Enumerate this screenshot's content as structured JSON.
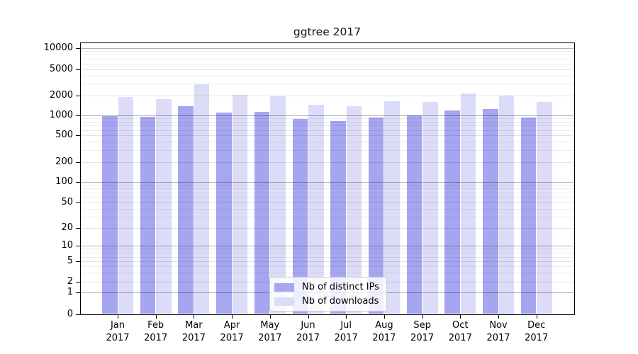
{
  "title": "ggtree 2017",
  "legend": {
    "items": [
      {
        "label": "Nb of distinct IPs",
        "color": "#a5a5f0"
      },
      {
        "label": "Nb of downloads",
        "color": "#dcdcf8"
      }
    ]
  },
  "y_axis": {
    "tick_labels": [
      "0",
      "1",
      "2",
      "5",
      "10",
      "20",
      "50",
      "100",
      "200",
      "500",
      "1000",
      "2000",
      "5000",
      "10000"
    ]
  },
  "x_axis": {
    "months": [
      "Jan",
      "Feb",
      "Mar",
      "Apr",
      "May",
      "Jun",
      "Jul",
      "Aug",
      "Sep",
      "Oct",
      "Nov",
      "Dec"
    ],
    "year": "2017"
  },
  "chart_data": {
    "type": "bar",
    "title": "ggtree 2017",
    "categories": [
      "Jan 2017",
      "Feb 2017",
      "Mar 2017",
      "Apr 2017",
      "May 2017",
      "Jun 2017",
      "Jul 2017",
      "Aug 2017",
      "Sep 2017",
      "Oct 2017",
      "Nov 2017",
      "Dec 2017"
    ],
    "series": [
      {
        "name": "Nb of distinct IPs",
        "color": "#a5a5f0",
        "values": [
          960,
          955,
          1350,
          1090,
          1120,
          885,
          815,
          930,
          985,
          1170,
          1230,
          930
        ]
      },
      {
        "name": "Nb of downloads",
        "color": "#dcdcf8",
        "values": [
          1880,
          1760,
          2950,
          2020,
          1925,
          1420,
          1365,
          1630,
          1595,
          2150,
          2000,
          1570
        ]
      }
    ],
    "xlabel": "",
    "ylabel": "",
    "yscale": "log-like (0 baseline, log above 1)",
    "yticks": [
      0,
      1,
      2,
      5,
      10,
      20,
      50,
      100,
      200,
      500,
      1000,
      2000,
      5000,
      10000
    ],
    "ylim": [
      0,
      13000
    ],
    "grid": true,
    "legend_position": "lower center, inside plot"
  }
}
